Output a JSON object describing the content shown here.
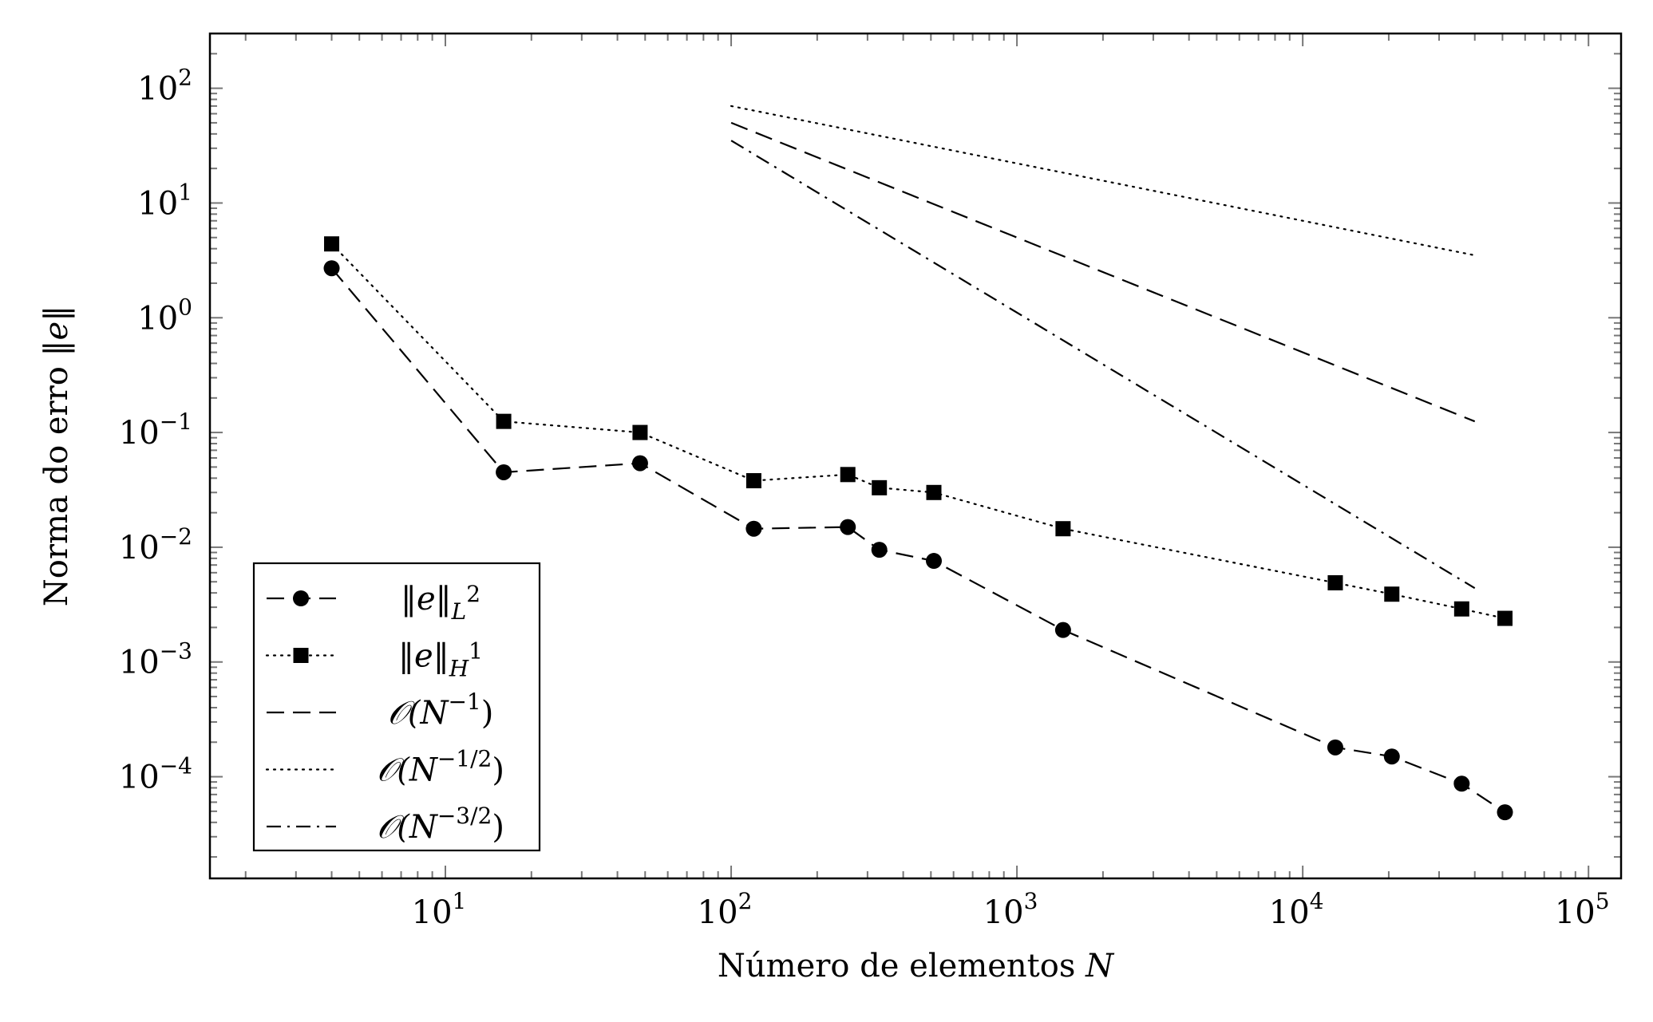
{
  "chart_data": {
    "type": "line",
    "xscale": "log",
    "yscale": "log",
    "xlim": [
      1.5,
      130000
    ],
    "ylim": [
      1.3e-05,
      300
    ],
    "xlabel": {
      "text": "Número de elementos ",
      "var": "N"
    },
    "ylabel": {
      "text": "Norma do erro ",
      "expr": "‖e‖"
    },
    "xticks": [
      {
        "value": 10,
        "base": "10",
        "exp": "1"
      },
      {
        "value": 100,
        "base": "10",
        "exp": "2"
      },
      {
        "value": 1000,
        "base": "10",
        "exp": "3"
      },
      {
        "value": 10000,
        "base": "10",
        "exp": "4"
      },
      {
        "value": 100000,
        "base": "10",
        "exp": "5"
      }
    ],
    "yticks": [
      {
        "value": 100,
        "base": "10",
        "exp": "2"
      },
      {
        "value": 10,
        "base": "10",
        "exp": "1"
      },
      {
        "value": 1,
        "base": "10",
        "exp": "0"
      },
      {
        "value": 0.1,
        "base": "10",
        "exp": "−1"
      },
      {
        "value": 0.01,
        "base": "10",
        "exp": "−2"
      },
      {
        "value": 0.001,
        "base": "10",
        "exp": "−3"
      },
      {
        "value": 0.0001,
        "base": "10",
        "exp": "−4"
      }
    ],
    "legend_position": "bottom-left",
    "series": [
      {
        "name": "‖e‖_L²",
        "label_main": "‖e‖",
        "label_sub": "L",
        "label_sup": "2",
        "style": "dashed",
        "marker": "circle",
        "x": [
          4,
          16,
          48,
          120,
          256,
          330,
          512,
          1450,
          13000,
          20500,
          36000,
          51000
        ],
        "y": [
          2.7,
          0.045,
          0.054,
          0.0145,
          0.015,
          0.0095,
          0.0076,
          0.0019,
          0.00018,
          0.00015,
          8.7e-05,
          4.9e-05
        ]
      },
      {
        "name": "‖e‖_H¹",
        "label_main": "‖e‖",
        "label_sub": "H",
        "label_sup": "1",
        "style": "dotted",
        "marker": "square",
        "x": [
          4,
          16,
          48,
          120,
          256,
          330,
          512,
          1450,
          13000,
          20500,
          36000,
          51000
        ],
        "y": [
          4.4,
          0.125,
          0.1,
          0.038,
          0.043,
          0.033,
          0.03,
          0.0145,
          0.0049,
          0.0039,
          0.0029,
          0.0024
        ]
      },
      {
        "name": "O(N^-1)",
        "label_main": "(N",
        "label_sup": "−1",
        "label_end": ")",
        "style": "dashed",
        "marker": "none",
        "x": [
          100,
          40000
        ],
        "y": [
          50,
          0.125
        ]
      },
      {
        "name": "O(N^-1/2)",
        "label_main": "(N",
        "label_sup": "−1/2",
        "label_end": ")",
        "style": "dotted",
        "marker": "none",
        "x": [
          100,
          40000
        ],
        "y": [
          70,
          3.5
        ]
      },
      {
        "name": "O(N^-3/2)",
        "label_main": "(N",
        "label_sup": "−3/2",
        "label_end": ")",
        "style": "dashdot",
        "marker": "none",
        "x": [
          100,
          40000
        ],
        "y": [
          35,
          0.0044
        ]
      }
    ]
  }
}
